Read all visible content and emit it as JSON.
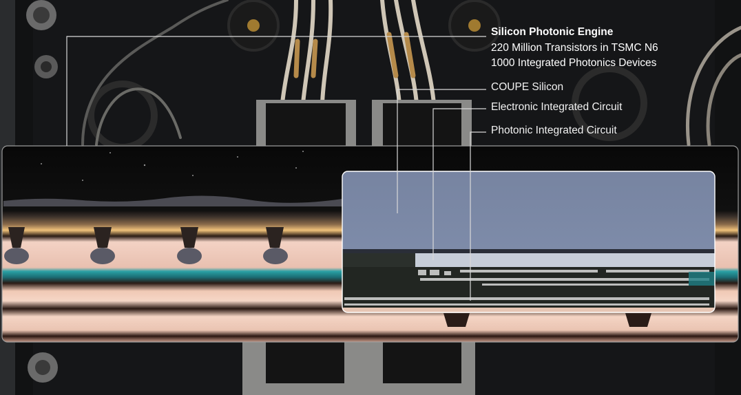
{
  "annotations": {
    "engine_title": "Silicon Photonic Engine",
    "engine_line_1": "220 Million Transistors in TSMC N6",
    "engine_line_2": "1000 Integrated Photonics Devices",
    "coupe_label": "COUPE Silicon",
    "eic_label": "Electronic Integrated Circuit",
    "pic_label": "Photonic Integrated Circuit"
  },
  "colors": {
    "background": "#0b0c0c",
    "label_text": "#ffffff",
    "leader_line": "#d9d9d9",
    "coupe_silicon": "#7c8aa8",
    "copper": "#e9b184"
  }
}
